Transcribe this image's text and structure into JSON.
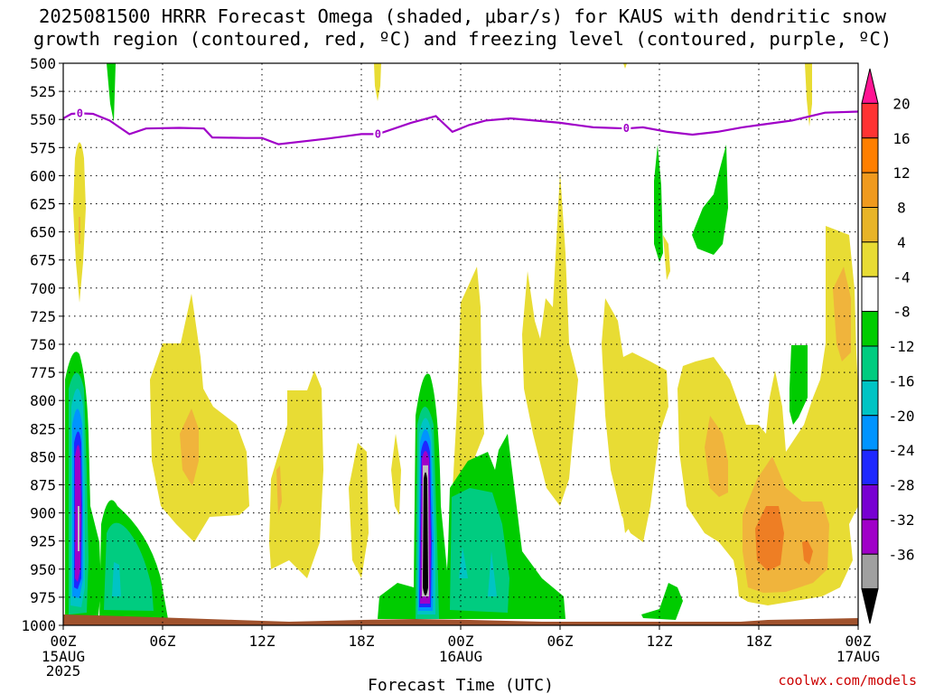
{
  "title": {
    "line1": "2025081500 HRRR Forecast Omega (shaded, μbar/s) for KAUS with dendritic snow",
    "line2": "growth region (contoured, red, ºC) and freezing level (contoured, purple, ºC)"
  },
  "chart_data": {
    "type": "heatmap",
    "title": "2025081500 HRRR Forecast Omega (shaded, μbar/s) for KAUS with dendritic snow growth region (contoured, red, ºC) and freezing level (contoured, purple, ºC)",
    "xlabel": "Forecast Time (UTC)",
    "ylabel": "",
    "x_unit": "forecast hour",
    "xlim": [
      0,
      48
    ],
    "ylim": [
      1000,
      500
    ],
    "y_log_scale": false,
    "y_ticks": [
      500,
      525,
      550,
      575,
      600,
      625,
      650,
      675,
      700,
      725,
      750,
      775,
      800,
      825,
      850,
      875,
      900,
      925,
      950,
      975,
      1000
    ],
    "x_ticks": [
      {
        "hour": 0,
        "label": "00Z",
        "sublabel": "15AUG",
        "sublabel2": "2025"
      },
      {
        "hour": 6,
        "label": "06Z"
      },
      {
        "hour": 12,
        "label": "12Z"
      },
      {
        "hour": 18,
        "label": "18Z"
      },
      {
        "hour": 24,
        "label": "00Z",
        "sublabel": "16AUG"
      },
      {
        "hour": 30,
        "label": "06Z"
      },
      {
        "hour": 36,
        "label": "12Z"
      },
      {
        "hour": 42,
        "label": "18Z"
      },
      {
        "hour": 48,
        "label": "00Z",
        "sublabel": "17AUG"
      }
    ],
    "grid": true,
    "colorbar": {
      "placement": "right",
      "labels": [
        "20",
        "16",
        "12",
        "8",
        "4",
        "-4",
        "-8",
        "-12",
        "-16",
        "-20",
        "-24",
        "-28",
        "-32",
        "-36"
      ],
      "colors": [
        "#ff1493",
        "#ff3333",
        "#ff7f00",
        "#f09a1e",
        "#e8b428",
        "#e8dc34",
        "#ffffff",
        "#00cc00",
        "#00cc80",
        "#00c4c4",
        "#0094ff",
        "#1e28ff",
        "#7800d2",
        "#a000c8",
        "#a0a0a0",
        "#000000"
      ]
    },
    "freezing_level": {
      "value_label": "0",
      "color": "#a000c8",
      "x": [
        0,
        0.5,
        1,
        1.8,
        2.8,
        4,
        5,
        7,
        8.5,
        9,
        11,
        12,
        13,
        16,
        18,
        19,
        21,
        22.5,
        23.5,
        24.5,
        25.5,
        27,
        30,
        32,
        34,
        35,
        36.5,
        38,
        39.5,
        41,
        42,
        44,
        46,
        48
      ],
      "y": [
        549,
        545,
        544.5,
        545,
        551,
        563,
        558,
        557.5,
        558,
        566,
        566.5,
        566.5,
        572,
        567,
        563,
        563,
        553,
        547,
        561,
        555,
        551,
        549,
        553,
        557,
        558,
        557,
        561,
        563.5,
        561,
        557,
        555,
        551,
        544,
        543
      ],
      "label_positions": [
        1,
        19,
        34
      ]
    },
    "omega_regions": [
      {
        "level": 4,
        "note": "positive omega (yellow, 4-8)"
      },
      {
        "level": 8,
        "note": "positive omega (orange, 8-12)"
      },
      {
        "level": 12,
        "note": "positive omega (dark orange, 12-16)"
      },
      {
        "level": -4,
        "note": "negative omega (green, -4 to -8)"
      },
      {
        "level": -8,
        "note": "negative omega (-8 to -12)"
      },
      {
        "level": -12,
        "note": "negative omega (-12 to -16)"
      },
      {
        "level": -16,
        "note": "negative omega (-16 to -20)"
      },
      {
        "level": -20,
        "note": "negative omega (-20 to -24)"
      },
      {
        "level": -24,
        "note": "negative omega (-24 to -28)"
      },
      {
        "level": -28,
        "note": "negative omega (-28 to -32)"
      },
      {
        "level": -36,
        "note": "negative omega (< -36)"
      }
    ]
  },
  "credit": "coolwx.com/models"
}
